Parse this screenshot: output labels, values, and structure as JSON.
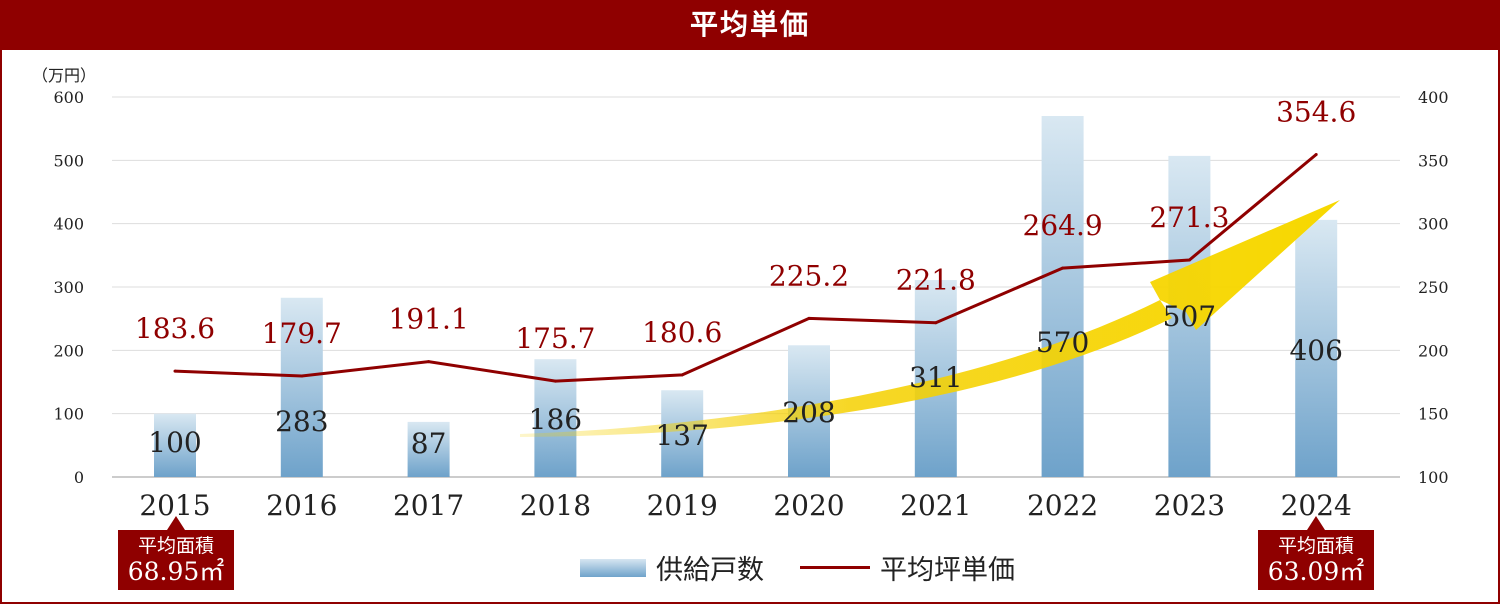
{
  "header": {
    "title": "平均単価"
  },
  "colors": {
    "brand": "#8f0000",
    "bar_top": "#d7e6f1",
    "bar_bottom": "#6fa3cb",
    "line": "#8f0000",
    "trend_arrow": "#f5d000"
  },
  "chart_data": {
    "type": "bar+line",
    "title": "平均単価",
    "categories": [
      "2015",
      "2016",
      "2017",
      "2018",
      "2019",
      "2020",
      "2021",
      "2022",
      "2023",
      "2024"
    ],
    "series": [
      {
        "name": "供給戸数",
        "type": "bar",
        "axis": "left",
        "values": [
          100,
          283,
          87,
          186,
          137,
          208,
          311,
          570,
          507,
          406
        ]
      },
      {
        "name": "平均坪単価",
        "type": "line",
        "axis": "right",
        "values": [
          183.6,
          179.7,
          191.1,
          175.7,
          180.6,
          225.2,
          221.8,
          264.9,
          271.3,
          354.6
        ]
      }
    ],
    "y_left": {
      "unit_label": "（万円）",
      "range": [
        0,
        600
      ],
      "ticks": [
        "0",
        "100",
        "200",
        "300",
        "400",
        "500",
        "600"
      ]
    },
    "y_right": {
      "range": [
        100,
        400
      ],
      "ticks": [
        "100",
        "150",
        "200",
        "250",
        "300",
        "350",
        "400"
      ]
    },
    "grid": true,
    "legend": "bottom-center",
    "trend_arrow": "upward yellow arrow from 2018 to 2024"
  },
  "badges": [
    {
      "year": "2015",
      "label": "平均面積",
      "value": "68.95㎡"
    },
    {
      "year": "2024",
      "label": "平均面積",
      "value": "63.09㎡"
    }
  ],
  "legend": {
    "bar": "供給戸数",
    "line": "平均坪単価"
  }
}
